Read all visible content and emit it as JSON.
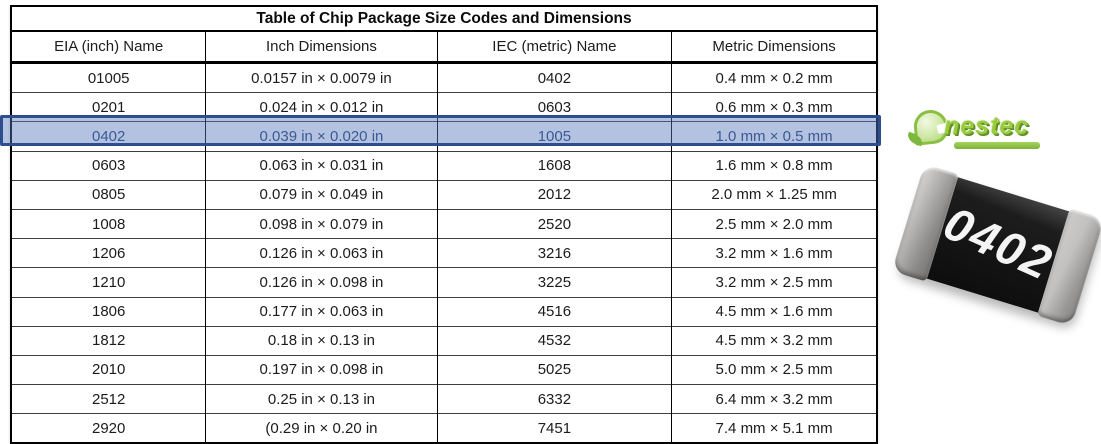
{
  "table": {
    "title": "Table of Chip Package Size Codes and Dimensions",
    "headers": [
      "EIA (inch) Name",
      "Inch Dimensions",
      "IEC (metric) Name",
      "Metric Dimensions"
    ],
    "rows": [
      [
        "01005",
        "0.0157 in × 0.0079 in",
        "0402",
        "0.4 mm × 0.2 mm"
      ],
      [
        "0201",
        "0.024 in × 0.012 in",
        "0603",
        "0.6 mm × 0.3 mm"
      ],
      [
        "0402",
        "0.039 in × 0.020 in",
        "1005",
        "1.0 mm × 0.5 mm"
      ],
      [
        "0603",
        "0.063 in × 0.031 in",
        "1608",
        "1.6 mm × 0.8 mm"
      ],
      [
        "0805",
        "0.079 in × 0.049 in",
        "2012",
        "2.0 mm × 1.25 mm"
      ],
      [
        "1008",
        "0.098 in × 0.079 in",
        "2520",
        "2.5 mm × 2.0 mm"
      ],
      [
        "1206",
        "0.126 in × 0.063 in",
        "3216",
        "3.2 mm × 1.6 mm"
      ],
      [
        "1210",
        "0.126 in × 0.098 in",
        "3225",
        "3.2 mm × 2.5 mm"
      ],
      [
        "1806",
        "0.177 in × 0.063 in",
        "4516",
        "4.5 mm × 1.6 mm"
      ],
      [
        "1812",
        "0.18 in × 0.13 in",
        "4532",
        "4.5 mm × 3.2 mm"
      ],
      [
        "2010",
        "0.197 in × 0.098 in",
        "5025",
        "5.0 mm × 2.5 mm"
      ],
      [
        "2512",
        "0.25 in × 0.13 in",
        "6332",
        "6.4 mm × 3.2 mm"
      ],
      [
        "2920",
        "(0.29 in × 0.20 in",
        "7451",
        "7.4 mm × 5.1 mm"
      ]
    ],
    "highlighted_row_index": 2,
    "highlight_colors": {
      "fill": "rgba(88,120,188,0.45)",
      "border": "#2d4d8e"
    }
  },
  "logo": {
    "wordmark": "nestec",
    "icon": "leaf-c",
    "accent_color": "#8cc63f"
  },
  "chip_photo": {
    "label": "0402",
    "body_color": "#161616",
    "cap_color": "#aaa8a6"
  }
}
